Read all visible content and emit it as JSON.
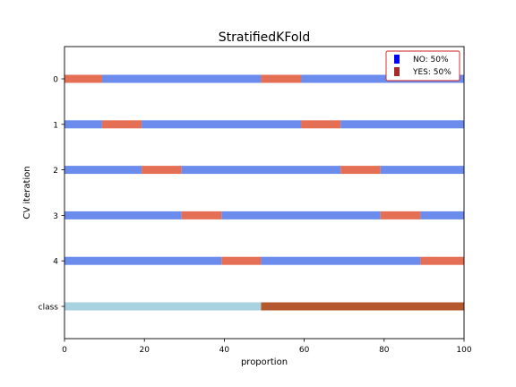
{
  "chart_data": {
    "type": "bar",
    "title": "StratifiedKFold",
    "xlabel": "proportion",
    "ylabel": "CV iteration",
    "xlim": [
      0,
      100
    ],
    "xticks": [
      0,
      20,
      40,
      60,
      80,
      100
    ],
    "grid": false,
    "legend_position": "top-right",
    "legend": [
      {
        "label": "NO: 50%",
        "color": "#0000ff"
      },
      {
        "label": "YES: 50%",
        "color": "#a52a2a"
      }
    ],
    "colors": {
      "train": "#6b8cec",
      "test": "#e46f55",
      "class_no": "#a8d2e0",
      "class_yes": "#b5582e"
    },
    "rows": [
      {
        "label": "0",
        "segments": [
          {
            "start": 0,
            "end": 9.4,
            "role": "test"
          },
          {
            "start": 9.4,
            "end": 49.2,
            "role": "train"
          },
          {
            "start": 49.2,
            "end": 59.2,
            "role": "test"
          },
          {
            "start": 59.2,
            "end": 100,
            "role": "train"
          }
        ]
      },
      {
        "label": "1",
        "segments": [
          {
            "start": 0,
            "end": 9.4,
            "role": "train"
          },
          {
            "start": 9.4,
            "end": 19.3,
            "role": "test"
          },
          {
            "start": 19.3,
            "end": 59.2,
            "role": "train"
          },
          {
            "start": 59.2,
            "end": 69.1,
            "role": "test"
          },
          {
            "start": 69.1,
            "end": 100,
            "role": "train"
          }
        ]
      },
      {
        "label": "2",
        "segments": [
          {
            "start": 0,
            "end": 19.3,
            "role": "train"
          },
          {
            "start": 19.3,
            "end": 29.3,
            "role": "test"
          },
          {
            "start": 29.3,
            "end": 69.1,
            "role": "train"
          },
          {
            "start": 69.1,
            "end": 79.1,
            "role": "test"
          },
          {
            "start": 79.1,
            "end": 100,
            "role": "train"
          }
        ]
      },
      {
        "label": "3",
        "segments": [
          {
            "start": 0,
            "end": 29.3,
            "role": "train"
          },
          {
            "start": 29.3,
            "end": 39.3,
            "role": "test"
          },
          {
            "start": 39.3,
            "end": 79.1,
            "role": "train"
          },
          {
            "start": 79.1,
            "end": 89.1,
            "role": "test"
          },
          {
            "start": 89.1,
            "end": 100,
            "role": "train"
          }
        ]
      },
      {
        "label": "4",
        "segments": [
          {
            "start": 0,
            "end": 39.3,
            "role": "train"
          },
          {
            "start": 39.3,
            "end": 49.2,
            "role": "test"
          },
          {
            "start": 49.2,
            "end": 89.1,
            "role": "train"
          },
          {
            "start": 89.1,
            "end": 100,
            "role": "test"
          }
        ]
      },
      {
        "label": "class",
        "segments": [
          {
            "start": 0,
            "end": 49.2,
            "role": "class_no"
          },
          {
            "start": 49.2,
            "end": 100,
            "role": "class_yes"
          }
        ]
      }
    ]
  }
}
